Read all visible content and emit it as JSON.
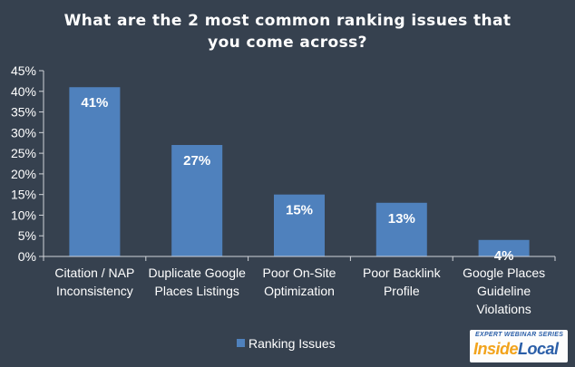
{
  "chart_data": {
    "type": "bar",
    "title": "What are the 2 most common ranking issues that you come across?",
    "categories": [
      "Citation / NAP Inconsistency",
      "Duplicate Google Places Listings",
      "Poor On-Site Optimization",
      "Poor Backlink Profile",
      "Google Places Guideline Violations"
    ],
    "series": [
      {
        "name": "Ranking Issues",
        "values": [
          41,
          27,
          15,
          13,
          4
        ]
      }
    ],
    "data_labels": [
      "41%",
      "27%",
      "15%",
      "13%",
      "4%"
    ],
    "y_ticks": [
      "0%",
      "5%",
      "10%",
      "15%",
      "20%",
      "25%",
      "30%",
      "35%",
      "40%",
      "45%"
    ],
    "ylim": [
      0,
      45
    ],
    "grid": false,
    "legend_position": "bottom",
    "bar_color": "#4f81bd"
  },
  "logo": {
    "series_text": "EXPERT WEBINAR SERIES",
    "brand_part1": "Inside",
    "brand_part2": "Local"
  }
}
